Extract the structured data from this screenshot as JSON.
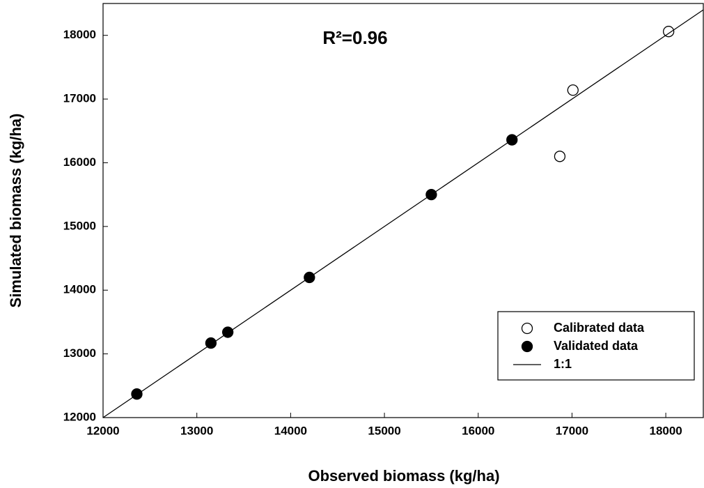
{
  "chart_data": {
    "type": "scatter",
    "xlabel": "Observed biomass (kg/ha)",
    "ylabel": "Simulated biomass (kg/ha)",
    "annotation": "R²=0.96",
    "xlim": [
      12000,
      18400
    ],
    "ylim": [
      12000,
      18500
    ],
    "xticks": [
      12000,
      13000,
      14000,
      15000,
      16000,
      17000,
      18000
    ],
    "yticks": [
      12000,
      13000,
      14000,
      15000,
      16000,
      17000,
      18000
    ],
    "grid": false,
    "legend": "lower right",
    "series": [
      {
        "name": "Calibrated data",
        "marker": "open-circle",
        "color": "#000000",
        "x": [
          16870,
          17010,
          18030
        ],
        "values": [
          16100,
          17140,
          18060
        ]
      },
      {
        "name": "Validated data",
        "marker": "filled-circle",
        "color": "#000000",
        "x": [
          12360,
          13150,
          13330,
          14200,
          15500,
          16360
        ],
        "values": [
          12370,
          13170,
          13340,
          14200,
          15500,
          16360
        ]
      },
      {
        "name": "1:1",
        "marker": "line",
        "color": "#000000",
        "x": [
          12000,
          18400
        ],
        "values": [
          12000,
          18400
        ]
      }
    ]
  }
}
